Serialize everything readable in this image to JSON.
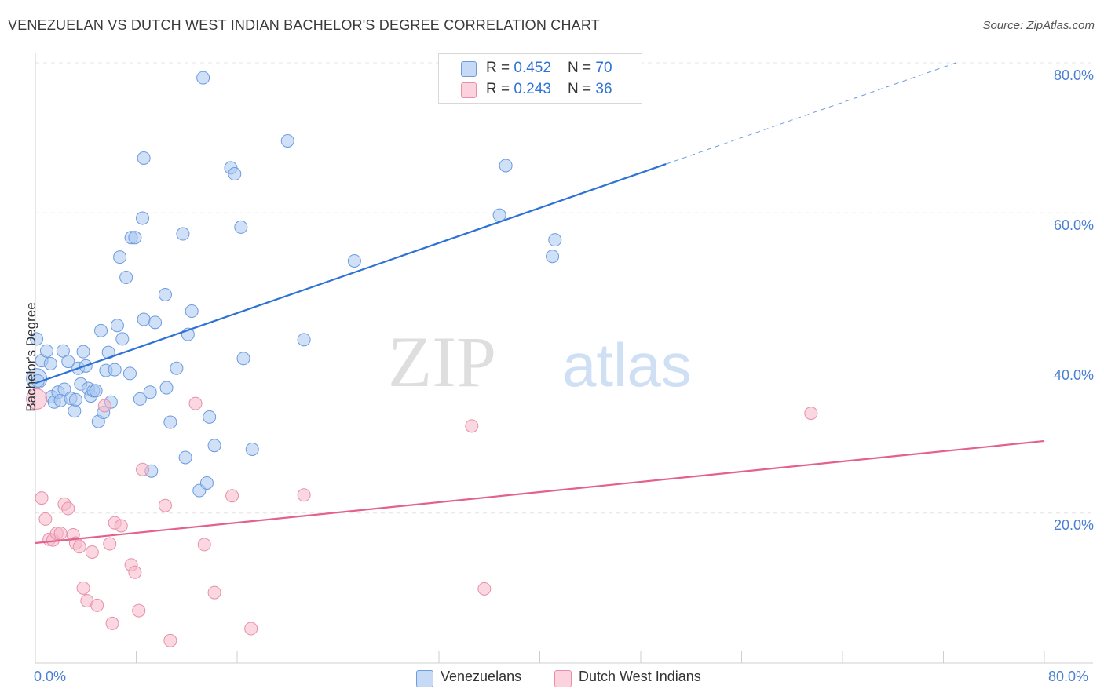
{
  "title": "VENEZUELAN VS DUTCH WEST INDIAN BACHELOR'S DEGREE CORRELATION CHART",
  "source": "Source: ZipAtlas.com",
  "watermark": {
    "part1": "ZIP",
    "part2": "atlas"
  },
  "stats": [
    {
      "r_label": "R = ",
      "r_value": "0.452",
      "n_label": "N = ",
      "n_value": "70",
      "color": "#a9c7f0"
    },
    {
      "r_label": "R = ",
      "r_value": "0.243",
      "n_label": "N = ",
      "n_value": "36",
      "color": "#f5b7c8"
    }
  ],
  "chart_data": {
    "type": "scatter",
    "title": "VENEZUELAN VS DUTCH WEST INDIAN BACHELOR'S DEGREE CORRELATION CHART",
    "xlabel": "",
    "ylabel": "Bachelor's Degree",
    "xlim": [
      0,
      80
    ],
    "ylim": [
      0,
      80
    ],
    "x_tick_labels": [
      "0.0%",
      "80.0%"
    ],
    "y_tick_labels": [
      "20.0%",
      "40.0%",
      "60.0%",
      "80.0%"
    ],
    "y_ticks": [
      20,
      40,
      60,
      80
    ],
    "series": [
      {
        "name": "Venezuelans",
        "color": "#a9c7f0",
        "stroke": "#6b9be0",
        "trend_color": "#2e72d6",
        "trend": {
          "x0": 0,
          "y0": 37.3,
          "x1": 50,
          "y1": 66.5,
          "solid_to": 50,
          "dash_to": 73,
          "dash_y": 80
        },
        "points": [
          [
            0.1,
            37.9
          ],
          [
            0.1,
            43.2
          ],
          [
            0.5,
            40.3
          ],
          [
            0.9,
            41.6
          ],
          [
            1.2,
            39.9
          ],
          [
            1.3,
            35.5
          ],
          [
            1.5,
            34.8
          ],
          [
            1.8,
            36.1
          ],
          [
            2.0,
            35.0
          ],
          [
            2.2,
            41.6
          ],
          [
            2.3,
            36.5
          ],
          [
            2.6,
            40.2
          ],
          [
            2.8,
            35.3
          ],
          [
            3.1,
            33.6
          ],
          [
            3.2,
            35.1
          ],
          [
            3.4,
            39.3
          ],
          [
            3.6,
            37.2
          ],
          [
            3.8,
            41.5
          ],
          [
            4.0,
            39.6
          ],
          [
            4.2,
            36.6
          ],
          [
            4.4,
            35.6
          ],
          [
            4.6,
            36.3
          ],
          [
            4.8,
            36.3
          ],
          [
            5.0,
            32.2
          ],
          [
            5.2,
            44.3
          ],
          [
            5.4,
            33.4
          ],
          [
            5.6,
            39.0
          ],
          [
            5.8,
            41.4
          ],
          [
            6.0,
            34.8
          ],
          [
            6.3,
            39.1
          ],
          [
            6.5,
            45.0
          ],
          [
            6.7,
            54.1
          ],
          [
            6.9,
            43.2
          ],
          [
            7.2,
            51.4
          ],
          [
            7.5,
            38.6
          ],
          [
            7.6,
            56.7
          ],
          [
            7.9,
            56.7
          ],
          [
            8.3,
            35.2
          ],
          [
            8.5,
            59.3
          ],
          [
            8.6,
            67.3
          ],
          [
            8.6,
            45.8
          ],
          [
            9.1,
            36.1
          ],
          [
            9.2,
            25.6
          ],
          [
            9.5,
            45.4
          ],
          [
            10.3,
            49.1
          ],
          [
            10.4,
            36.7
          ],
          [
            10.7,
            32.1
          ],
          [
            11.2,
            39.3
          ],
          [
            11.7,
            57.2
          ],
          [
            11.9,
            27.4
          ],
          [
            12.1,
            43.8
          ],
          [
            12.4,
            46.9
          ],
          [
            13.0,
            23.0
          ],
          [
            13.3,
            78.0
          ],
          [
            13.6,
            24.0
          ],
          [
            13.8,
            32.8
          ],
          [
            14.2,
            29.0
          ],
          [
            15.5,
            66.0
          ],
          [
            15.8,
            65.2
          ],
          [
            16.3,
            58.1
          ],
          [
            16.5,
            40.6
          ],
          [
            17.2,
            28.5
          ],
          [
            20.0,
            69.6
          ],
          [
            21.3,
            43.1
          ],
          [
            25.3,
            53.6
          ],
          [
            36.8,
            59.7
          ],
          [
            37.3,
            66.3
          ],
          [
            41.0,
            54.2
          ],
          [
            41.2,
            56.4
          ],
          [
            0.2,
            37.6
          ]
        ]
      },
      {
        "name": "Dutch West Indians",
        "color": "#f5b7c8",
        "stroke": "#e890a8",
        "trend_color": "#e3608f",
        "trend": {
          "x0": 0,
          "y0": 16.0,
          "x1": 80,
          "y1": 29.6
        },
        "points": [
          [
            0.1,
            35.2
          ],
          [
            0.5,
            22.0
          ],
          [
            0.8,
            19.2
          ],
          [
            1.1,
            16.5
          ],
          [
            1.4,
            16.4
          ],
          [
            1.7,
            17.3
          ],
          [
            2.0,
            17.3
          ],
          [
            2.3,
            21.2
          ],
          [
            2.6,
            20.6
          ],
          [
            3.0,
            17.1
          ],
          [
            3.2,
            16.0
          ],
          [
            3.5,
            15.5
          ],
          [
            3.8,
            10.0
          ],
          [
            4.1,
            8.3
          ],
          [
            4.5,
            14.8
          ],
          [
            4.9,
            7.7
          ],
          [
            5.5,
            34.3
          ],
          [
            5.9,
            15.9
          ],
          [
            6.1,
            5.3
          ],
          [
            6.3,
            18.7
          ],
          [
            6.8,
            18.3
          ],
          [
            7.6,
            13.1
          ],
          [
            7.9,
            12.1
          ],
          [
            8.2,
            7.0
          ],
          [
            8.5,
            25.8
          ],
          [
            10.3,
            21.0
          ],
          [
            10.7,
            3.0
          ],
          [
            12.7,
            34.6
          ],
          [
            13.4,
            15.8
          ],
          [
            14.2,
            9.4
          ],
          [
            15.6,
            22.3
          ],
          [
            17.1,
            4.6
          ],
          [
            21.3,
            22.4
          ],
          [
            34.6,
            31.6
          ],
          [
            35.6,
            9.9
          ],
          [
            61.5,
            33.3
          ]
        ]
      }
    ],
    "legend": [
      "Venezuelans",
      "Dutch West Indians"
    ]
  }
}
